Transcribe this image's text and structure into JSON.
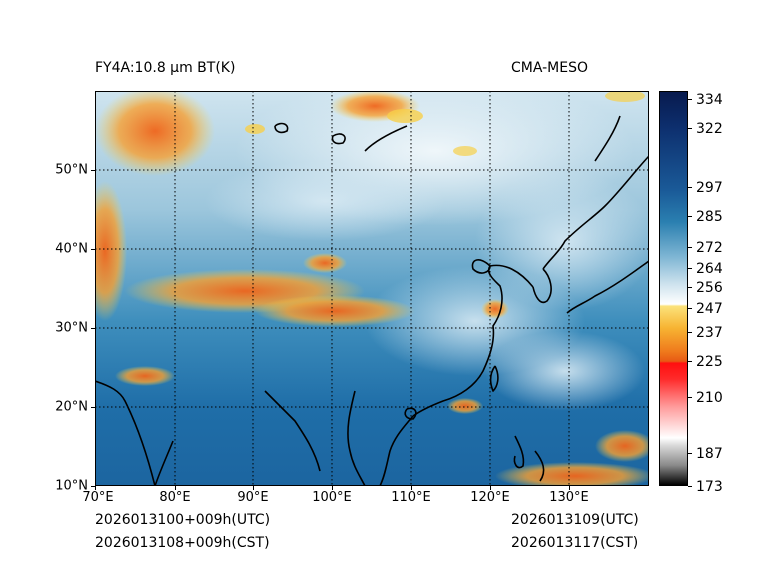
{
  "title_left": "FY4A:10.8 μm BT(K)",
  "title_right": "CMA-MESO",
  "lat_labels": [
    "50°N",
    "40°N",
    "30°N",
    "20°N",
    "10°N"
  ],
  "lon_labels": [
    "70°E",
    "80°E",
    "90°E",
    "100°E",
    "110°E",
    "120°E",
    "130°E"
  ],
  "colorbar": {
    "labels": [
      "334",
      "322",
      "297",
      "285",
      "272",
      "264",
      "256",
      "247",
      "237",
      "225",
      "210",
      "187",
      "173"
    ],
    "colors": {
      "dark_navy": "#0a1a4a",
      "blue": "#1f6ea8",
      "light_blue": "#a9cfe3",
      "yellow": "#f4d04a",
      "orange": "#ef7e1d",
      "red": "#ff1f1f",
      "gray": "#9a9a9a",
      "black": "#000000"
    }
  },
  "footer": {
    "init_utc": "2026013100+009h(UTC)",
    "init_cst": "2026013108+009h(CST)",
    "valid_utc": "2026013109(UTC)",
    "valid_cst": "2026013117(CST)"
  }
}
